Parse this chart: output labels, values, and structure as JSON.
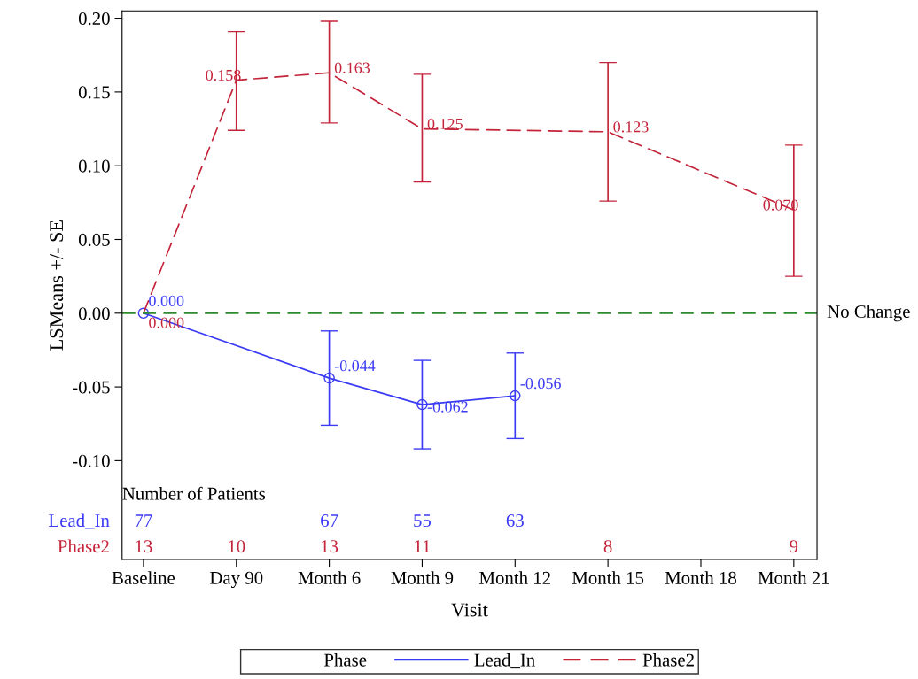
{
  "chart_data": {
    "type": "line",
    "xlabel": "Visit",
    "ylabel": "LSMeans +/- SE",
    "legend_title": "Phase",
    "categories": [
      "Baseline",
      "Day 90",
      "Month 6",
      "Month 9",
      "Month 12",
      "Month 15",
      "Month 18",
      "Month 21"
    ],
    "series": [
      {
        "name": "Lead_In",
        "color": "#3b3bf5",
        "line_style": "solid",
        "marker": "circle",
        "values": [
          0.0,
          null,
          -0.044,
          -0.062,
          -0.056,
          null,
          null,
          null
        ],
        "errors": [
          null,
          null,
          [
            -0.076,
            -0.012
          ],
          [
            -0.092,
            -0.032
          ],
          [
            -0.085,
            -0.027
          ],
          null,
          null,
          null
        ],
        "value_labels": [
          "0.000",
          null,
          "-0.044",
          "-0.062",
          "-0.056",
          null,
          null,
          null
        ]
      },
      {
        "name": "Phase2",
        "color": "#c4243a",
        "line_style": "dashed",
        "marker": "none",
        "values": [
          0.0,
          0.158,
          0.163,
          0.125,
          null,
          0.123,
          null,
          0.07
        ],
        "errors": [
          null,
          [
            0.124,
            0.191
          ],
          [
            0.129,
            0.198
          ],
          [
            0.089,
            0.162
          ],
          null,
          [
            0.076,
            0.17
          ],
          null,
          [
            0.025,
            0.114
          ]
        ],
        "value_labels": [
          "0.000",
          "0.158",
          "0.163",
          "0.125",
          null,
          "0.123",
          null,
          "0.070"
        ]
      }
    ],
    "ylim": [
      -0.167,
      0.205
    ],
    "yticks": [
      {
        "value": -0.1,
        "label": "-0.10"
      },
      {
        "value": -0.05,
        "label": "-0.05"
      },
      {
        "value": 0,
        "label": "0.00"
      },
      {
        "value": 0.05,
        "label": "0.05"
      },
      {
        "value": 0.1,
        "label": "0.10"
      },
      {
        "value": 0.15,
        "label": "0.15"
      },
      {
        "value": 0.2,
        "label": "0.20"
      }
    ],
    "ref_lines": [
      {
        "axis": "y",
        "value": 0,
        "label": "No Change",
        "color": "#2e8b2e",
        "line_style": "dashed"
      }
    ],
    "annotations": [
      "Number of Patients",
      "Lead_In",
      "77",
      "67",
      "55",
      "63",
      "Phase2",
      "13",
      "10",
      "13",
      "11",
      "8",
      "9"
    ],
    "grid": false,
    "legend": "bottom"
  }
}
